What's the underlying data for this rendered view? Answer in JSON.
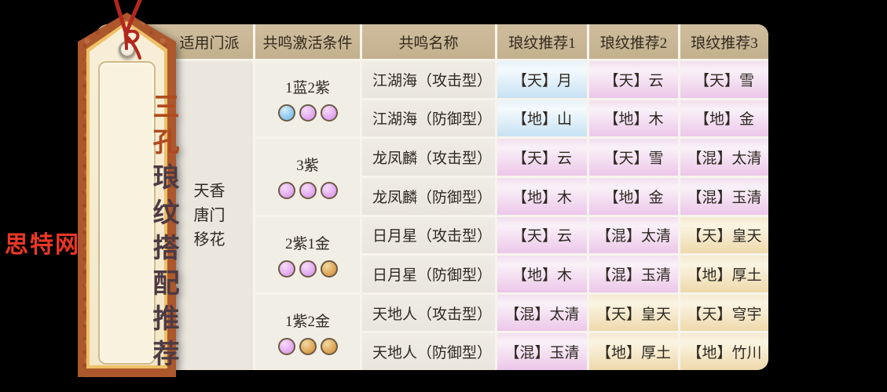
{
  "watermark": "思特网",
  "tag": {
    "title_accent": "三孔",
    "title_rest": "琅纹搭配推荐"
  },
  "table": {
    "headers": [
      "适用门派",
      "共鸣激活条件",
      "共鸣名称",
      "琅纹推荐1",
      "琅纹推荐2",
      "琅纹推荐3"
    ],
    "sects": [
      "天香",
      "唐门",
      "移花"
    ],
    "groups": [
      {
        "condition": "1蓝2紫",
        "orbs": [
          "blue",
          "purple",
          "purple"
        ],
        "rows": [
          {
            "name": "江湖海（攻击型）",
            "recs": [
              {
                "text": "【天】月",
                "tier": "blue"
              },
              {
                "text": "【天】云",
                "tier": "pink"
              },
              {
                "text": "【天】雪",
                "tier": "pink"
              }
            ]
          },
          {
            "name": "江湖海（防御型）",
            "recs": [
              {
                "text": "【地】山",
                "tier": "blue"
              },
              {
                "text": "【地】木",
                "tier": "pink"
              },
              {
                "text": "【地】金",
                "tier": "pink"
              }
            ]
          }
        ]
      },
      {
        "condition": "3紫",
        "orbs": [
          "purple",
          "purple",
          "purple"
        ],
        "rows": [
          {
            "name": "龙凤麟（攻击型）",
            "recs": [
              {
                "text": "【天】云",
                "tier": "pink"
              },
              {
                "text": "【天】雪",
                "tier": "pink"
              },
              {
                "text": "【混】太清",
                "tier": "pink"
              }
            ]
          },
          {
            "name": "龙凤麟（防御型）",
            "recs": [
              {
                "text": "【地】木",
                "tier": "pink"
              },
              {
                "text": "【地】金",
                "tier": "pink"
              },
              {
                "text": "【混】玉清",
                "tier": "pink"
              }
            ]
          }
        ]
      },
      {
        "condition": "2紫1金",
        "orbs": [
          "purple",
          "purple",
          "gold"
        ],
        "rows": [
          {
            "name": "日月星（攻击型）",
            "recs": [
              {
                "text": "【天】云",
                "tier": "pink"
              },
              {
                "text": "【混】太清",
                "tier": "pink"
              },
              {
                "text": "【天】皇天",
                "tier": "gold"
              }
            ]
          },
          {
            "name": "日月星（防御型）",
            "recs": [
              {
                "text": "【地】木",
                "tier": "pink"
              },
              {
                "text": "【混】玉清",
                "tier": "pink"
              },
              {
                "text": "【地】厚土",
                "tier": "gold"
              }
            ]
          }
        ]
      },
      {
        "condition": "1紫2金",
        "orbs": [
          "purple",
          "gold",
          "gold"
        ],
        "rows": [
          {
            "name": "天地人（攻击型）",
            "recs": [
              {
                "text": "【混】太清",
                "tier": "pink"
              },
              {
                "text": "【天】皇天",
                "tier": "gold"
              },
              {
                "text": "【天】穹宇",
                "tier": "gold"
              }
            ]
          },
          {
            "name": "天地人（防御型）",
            "recs": [
              {
                "text": "【混】玉清",
                "tier": "pink"
              },
              {
                "text": "【地】厚土",
                "tier": "gold"
              },
              {
                "text": "【地】竹川",
                "tier": "gold"
              }
            ]
          }
        ]
      }
    ]
  },
  "colors": {
    "header_bg": "#c8b695",
    "tier_blue": "#c7e1f3",
    "tier_pink": "#ecc7e9",
    "tier_gold": "#eed9ab",
    "orb_blue": "#8ac7f1",
    "orb_purple": "#e1a7f0",
    "orb_gold": "#dca253",
    "tag_frame": "#ad572d",
    "tag_title_accent": "#b04a1d",
    "tag_title_dark": "#4e3a43",
    "watermark_red": "#ea3726",
    "string_red": "#b3271e"
  }
}
